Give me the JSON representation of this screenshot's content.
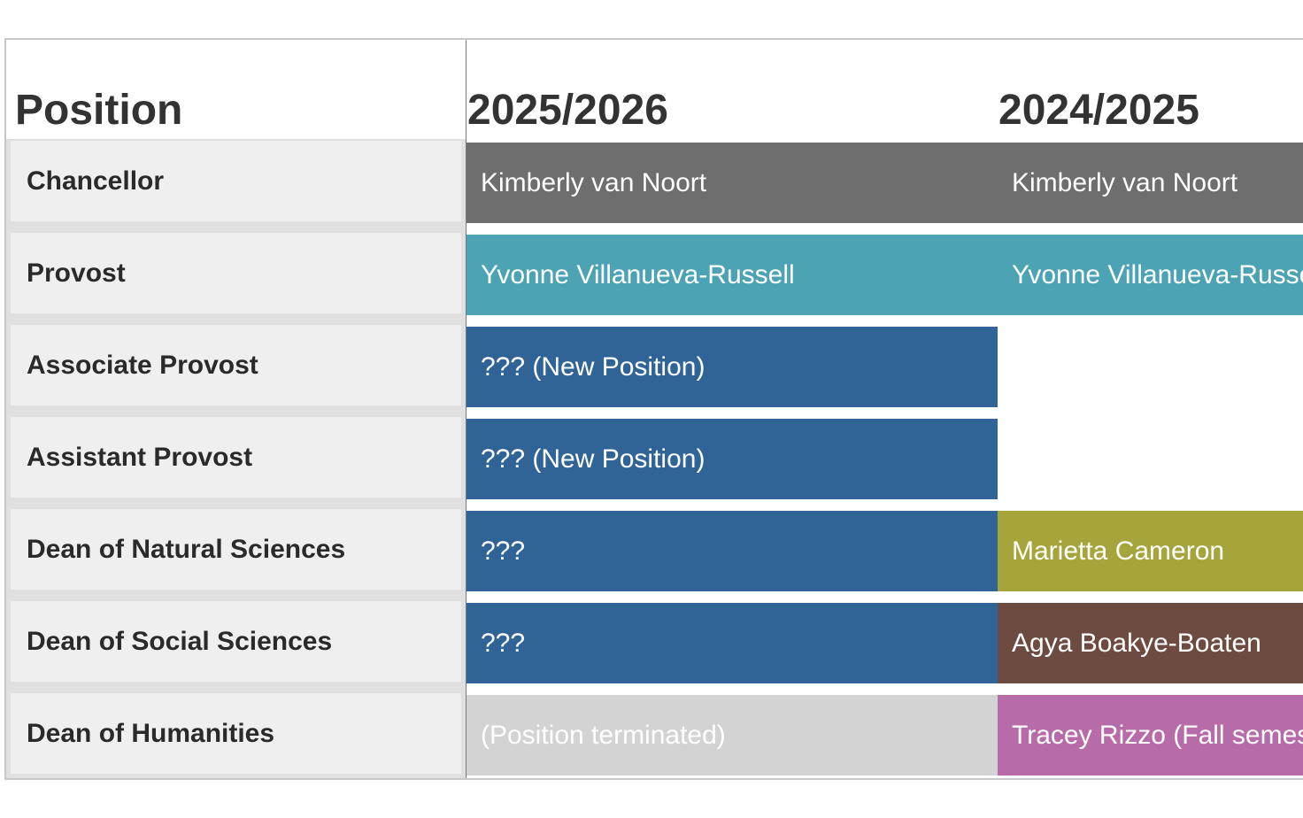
{
  "header": {
    "position_label": "Position",
    "years": [
      "2025/2026",
      "2024/2025"
    ]
  },
  "rows": [
    {
      "position": "Chancellor",
      "cells": [
        {
          "text": "Kimberly van Noort",
          "color": "#6e6e6e"
        },
        {
          "text": "Kimberly van Noort",
          "color": "#6e6e6e"
        }
      ]
    },
    {
      "position": "Provost",
      "cells": [
        {
          "text": "Yvonne Villanueva-Russell",
          "color": "#4ba3b4"
        },
        {
          "text": "Yvonne Villanueva-Russell",
          "color": "#4ba3b4"
        }
      ]
    },
    {
      "position": "Associate Provost",
      "cells": [
        {
          "text": "??? (New Position)",
          "color": "#316496"
        },
        {
          "text": "",
          "color": "#ffffff"
        }
      ]
    },
    {
      "position": "Assistant Provost",
      "cells": [
        {
          "text": "??? (New Position)",
          "color": "#316496"
        },
        {
          "text": "",
          "color": "#ffffff"
        }
      ]
    },
    {
      "position": "Dean of Natural Sciences",
      "cells": [
        {
          "text": "???",
          "color": "#316496"
        },
        {
          "text": "Marietta Cameron",
          "color": "#a5a53b"
        }
      ]
    },
    {
      "position": "Dean of Social Sciences",
      "cells": [
        {
          "text": "???",
          "color": "#316496"
        },
        {
          "text": "Agya Boakye-Boaten",
          "color": "#6e4b41"
        }
      ]
    },
    {
      "position": "Dean of Humanities",
      "cells": [
        {
          "text": "(Position terminated)",
          "color": "#d3d3d3"
        },
        {
          "text": "Tracey Rizzo (Fall semester)",
          "color": "#b76ba8"
        }
      ]
    }
  ]
}
